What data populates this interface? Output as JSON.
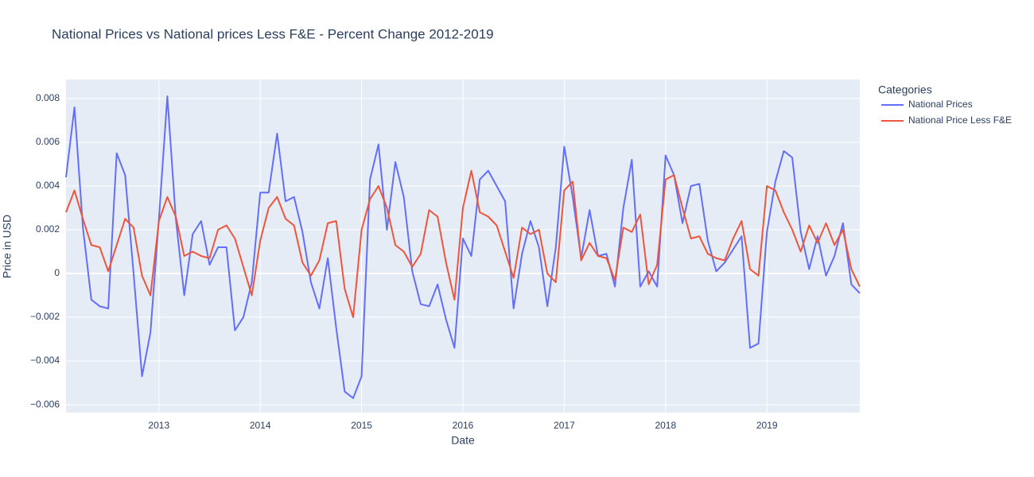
{
  "chart_data": {
    "type": "line",
    "title": "National Prices vs National prices Less F&E - Percent Change 2012-2019",
    "x_label": "Date",
    "y_label": "Price in USD",
    "legend_title": "Categories",
    "legend": "right",
    "grid": true,
    "x": [
      "2012-02",
      "2012-03",
      "2012-04",
      "2012-05",
      "2012-06",
      "2012-07",
      "2012-08",
      "2012-09",
      "2012-10",
      "2012-11",
      "2012-12",
      "2013-01",
      "2013-02",
      "2013-03",
      "2013-04",
      "2013-05",
      "2013-06",
      "2013-07",
      "2013-08",
      "2013-09",
      "2013-10",
      "2013-11",
      "2013-12",
      "2014-01",
      "2014-02",
      "2014-03",
      "2014-04",
      "2014-05",
      "2014-06",
      "2014-07",
      "2014-08",
      "2014-09",
      "2014-10",
      "2014-11",
      "2014-12",
      "2015-01",
      "2015-02",
      "2015-03",
      "2015-04",
      "2015-05",
      "2015-06",
      "2015-07",
      "2015-08",
      "2015-09",
      "2015-10",
      "2015-11",
      "2015-12",
      "2016-01",
      "2016-02",
      "2016-03",
      "2016-04",
      "2016-05",
      "2016-06",
      "2016-07",
      "2016-08",
      "2016-09",
      "2016-10",
      "2016-11",
      "2016-12",
      "2017-01",
      "2017-02",
      "2017-03",
      "2017-04",
      "2017-05",
      "2017-06",
      "2017-07",
      "2017-08",
      "2017-09",
      "2017-10",
      "2017-11",
      "2017-12",
      "2018-01",
      "2018-02",
      "2018-03",
      "2018-04",
      "2018-05",
      "2018-06",
      "2018-07",
      "2018-08",
      "2018-09",
      "2018-10",
      "2018-11",
      "2018-12",
      "2019-01",
      "2019-02",
      "2019-03",
      "2019-04",
      "2019-05",
      "2019-06",
      "2019-07",
      "2019-08",
      "2019-09",
      "2019-10",
      "2019-11",
      "2019-12"
    ],
    "series": [
      {
        "name": "National Prices",
        "color": "#636efa",
        "values": [
          0.0044,
          0.0076,
          0.0021,
          -0.0012,
          -0.0015,
          -0.0016,
          0.0055,
          0.0045,
          0.0,
          -0.0047,
          -0.0027,
          0.0025,
          0.0081,
          0.0025,
          -0.001,
          0.0018,
          0.0024,
          0.0004,
          0.0012,
          0.0012,
          -0.0026,
          -0.002,
          -0.0004,
          0.0037,
          0.0037,
          0.0064,
          0.0033,
          0.0035,
          0.0019,
          -0.0004,
          -0.0016,
          0.0007,
          -0.0025,
          -0.0054,
          -0.0057,
          -0.0047,
          0.0043,
          0.0059,
          0.002,
          0.0051,
          0.0035,
          0.0001,
          -0.0014,
          -0.0015,
          -0.0005,
          -0.0021,
          -0.0034,
          0.0016,
          0.0008,
          0.0043,
          0.0047,
          0.004,
          0.0033,
          -0.0016,
          0.0009,
          0.0024,
          0.0012,
          -0.0015,
          0.0012,
          0.0058,
          0.0035,
          0.0007,
          0.0029,
          0.0008,
          0.0009,
          -0.0006,
          0.003,
          0.0052,
          -0.0006,
          0.0001,
          -0.0006,
          0.0054,
          0.0045,
          0.0023,
          0.004,
          0.0041,
          0.0015,
          0.0001,
          0.0005,
          0.0011,
          0.0017,
          -0.0034,
          -0.0032,
          0.0019,
          0.0042,
          0.0056,
          0.0053,
          0.0019,
          0.0002,
          0.0017,
          -0.0001,
          0.0008,
          0.0023,
          -0.0005,
          -0.0009
        ]
      },
      {
        "name": "National Price Less F&E",
        "color": "#ef553b",
        "values": [
          0.0028,
          0.0038,
          0.0025,
          0.0013,
          0.0012,
          0.0001,
          0.0013,
          0.0025,
          0.0021,
          -0.0001,
          -0.001,
          0.0024,
          0.0035,
          0.0026,
          0.0008,
          0.001,
          0.0008,
          0.0007,
          0.002,
          0.0022,
          0.0016,
          0.0003,
          -0.001,
          0.0015,
          0.003,
          0.0035,
          0.0025,
          0.0022,
          0.0005,
          -0.0001,
          0.0006,
          0.0023,
          0.0024,
          -0.0007,
          -0.002,
          0.002,
          0.0034,
          0.004,
          0.003,
          0.0013,
          0.001,
          0.0003,
          0.0009,
          0.0029,
          0.0026,
          0.0005,
          -0.0012,
          0.003,
          0.0047,
          0.0028,
          0.0026,
          0.0022,
          0.001,
          -0.0002,
          0.0021,
          0.0018,
          0.002,
          0.0,
          -0.0004,
          0.0038,
          0.0042,
          0.0006,
          0.0014,
          0.0008,
          0.0007,
          -0.0003,
          0.0021,
          0.0019,
          0.0027,
          -0.0005,
          0.0004,
          0.0043,
          0.0045,
          0.003,
          0.0016,
          0.0017,
          0.0009,
          0.0007,
          0.0006,
          0.0016,
          0.0024,
          0.0002,
          -0.0001,
          0.004,
          0.0038,
          0.0028,
          0.002,
          0.001,
          0.0022,
          0.0014,
          0.0023,
          0.0013,
          0.002,
          0.0002,
          -0.0006
        ]
      }
    ],
    "xlim": [
      "2012-02",
      "2019-12"
    ],
    "xticks": [
      2013,
      2014,
      2015,
      2016,
      2017,
      2018,
      2019
    ],
    "ylim": [
      -0.00636,
      0.00887
    ],
    "yticks": [
      {
        "value": -0.006,
        "label": "−0.006"
      },
      {
        "value": -0.004,
        "label": "−0.004"
      },
      {
        "value": -0.002,
        "label": "−0.002"
      },
      0,
      0.002,
      0.004,
      0.006,
      0.008
    ]
  }
}
